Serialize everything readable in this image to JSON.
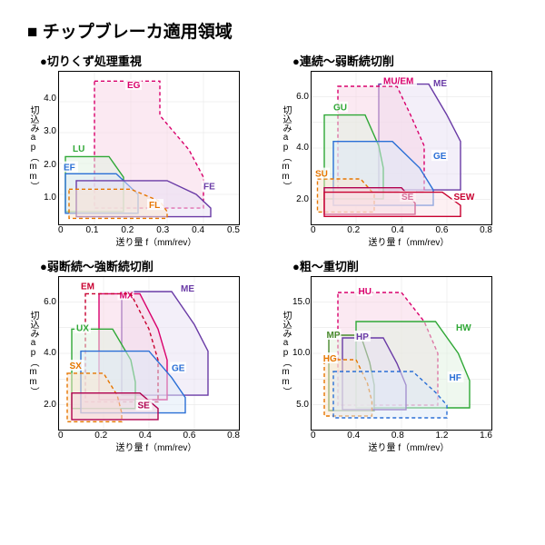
{
  "main_title": "■ チップブレーカ適用領域",
  "axis_x_label": "送り量 f（mm/rev）",
  "axis_y_label": "切込みap（mm）",
  "charts": [
    {
      "title": "●切りくず処理重視",
      "xlim": [
        0,
        0.5
      ],
      "xticks": [
        "0",
        "0.1",
        "0.2",
        "0.3",
        "0.4",
        "0.5"
      ],
      "ylim": [
        0,
        4.5
      ],
      "yticks": [
        "",
        "4.0",
        "3.0",
        "2.0",
        "1.0",
        ""
      ],
      "regions": [
        {
          "label": "EG",
          "color": "#d9006c",
          "fill": "#f8d3e5",
          "points": [
            [
              0.1,
              4.2
            ],
            [
              0.28,
              4.2
            ],
            [
              0.28,
              3.2
            ],
            [
              0.36,
              2.2
            ],
            [
              0.4,
              1.4
            ],
            [
              0.4,
              0.5
            ],
            [
              0.1,
              0.5
            ]
          ],
          "lx": 0.19,
          "ly": 4.0,
          "dashed": true
        },
        {
          "label": "LU",
          "color": "#2fa836",
          "fill": "#dff2df",
          "points": [
            [
              0.02,
              2.0
            ],
            [
              0.14,
              2.0
            ],
            [
              0.18,
              1.4
            ],
            [
              0.18,
              0.4
            ],
            [
              0.02,
              0.4
            ]
          ],
          "lx": 0.04,
          "ly": 2.15
        },
        {
          "label": "EF",
          "color": "#2a6fd6",
          "fill": "#dde9f8",
          "points": [
            [
              0.02,
              1.5
            ],
            [
              0.16,
              1.5
            ],
            [
              0.22,
              0.9
            ],
            [
              0.22,
              0.35
            ],
            [
              0.02,
              0.35
            ]
          ],
          "lx": 0.015,
          "ly": 1.6
        },
        {
          "label": "FE",
          "color": "#6a3ba6",
          "fill": "#e7dff4",
          "points": [
            [
              0.05,
              1.3
            ],
            [
              0.3,
              1.3
            ],
            [
              0.38,
              0.9
            ],
            [
              0.42,
              0.5
            ],
            [
              0.42,
              0.25
            ],
            [
              0.05,
              0.25
            ]
          ],
          "lx": 0.4,
          "ly": 1.05
        },
        {
          "label": "FL",
          "color": "#e67600",
          "fill": "#fce6cf",
          "points": [
            [
              0.03,
              1.05
            ],
            [
              0.2,
              1.05
            ],
            [
              0.28,
              0.7
            ],
            [
              0.3,
              0.4
            ],
            [
              0.3,
              0.2
            ],
            [
              0.03,
              0.2
            ]
          ],
          "lx": 0.25,
          "ly": 0.5,
          "dashed": true
        }
      ]
    },
    {
      "title": "●連続～弱断続切削",
      "xlim": [
        0,
        0.8
      ],
      "xticks": [
        "0",
        "0.2",
        "0.4",
        "0.6",
        "0.8"
      ],
      "ylim": [
        0,
        7
      ],
      "yticks": [
        "",
        "6.0",
        "",
        "4.0",
        "",
        "2.0",
        ""
      ],
      "regions": [
        {
          "label": "ME",
          "color": "#6a3ba6",
          "fill": "#e7dff4",
          "points": [
            [
              0.3,
              6.4
            ],
            [
              0.52,
              6.4
            ],
            [
              0.6,
              5.0
            ],
            [
              0.66,
              3.8
            ],
            [
              0.66,
              1.6
            ],
            [
              0.3,
              1.6
            ]
          ],
          "lx": 0.54,
          "ly": 6.3
        },
        {
          "label": "MU/EM",
          "color": "#d9006c",
          "fill": "#f8d3e5",
          "points": [
            [
              0.12,
              6.3
            ],
            [
              0.38,
              6.3
            ],
            [
              0.44,
              5.0
            ],
            [
              0.5,
              3.6
            ],
            [
              0.5,
              1.5
            ],
            [
              0.12,
              1.5
            ]
          ],
          "lx": 0.32,
          "ly": 6.4,
          "dashed": true
        },
        {
          "label": "GU",
          "color": "#2fa836",
          "fill": "#dff2df",
          "points": [
            [
              0.06,
              5.0
            ],
            [
              0.24,
              5.0
            ],
            [
              0.3,
              3.6
            ],
            [
              0.32,
              2.6
            ],
            [
              0.32,
              1.2
            ],
            [
              0.06,
              1.2
            ]
          ],
          "lx": 0.1,
          "ly": 5.2
        },
        {
          "label": "GE",
          "color": "#2a6fd6",
          "fill": "#dde9f8",
          "points": [
            [
              0.1,
              3.8
            ],
            [
              0.36,
              3.8
            ],
            [
              0.48,
              2.6
            ],
            [
              0.54,
              1.6
            ],
            [
              0.54,
              0.9
            ],
            [
              0.1,
              0.9
            ]
          ],
          "lx": 0.54,
          "ly": 3.0
        },
        {
          "label": "SU",
          "color": "#e67600",
          "fill": "#fce6cf",
          "points": [
            [
              0.03,
              2.1
            ],
            [
              0.22,
              2.1
            ],
            [
              0.28,
              1.4
            ],
            [
              0.28,
              0.6
            ],
            [
              0.03,
              0.6
            ]
          ],
          "lx": 0.02,
          "ly": 2.2,
          "dashed": true
        },
        {
          "label": "SE",
          "color": "#b0004f",
          "fill": "#f3d1de",
          "points": [
            [
              0.06,
              1.7
            ],
            [
              0.4,
              1.7
            ],
            [
              0.46,
              1.0
            ],
            [
              0.46,
              0.5
            ],
            [
              0.06,
              0.5
            ]
          ],
          "lx": 0.4,
          "ly": 1.15
        },
        {
          "label": "SEW",
          "color": "#c80030",
          "fill": "#fbe1e7",
          "points": [
            [
              0.06,
              1.5
            ],
            [
              0.58,
              1.5
            ],
            [
              0.66,
              0.9
            ],
            [
              0.66,
              0.4
            ],
            [
              0.06,
              0.4
            ]
          ],
          "lx": 0.63,
          "ly": 1.15
        }
      ]
    },
    {
      "title": "●弱断続～強断続切削",
      "xlim": [
        0,
        0.8
      ],
      "xticks": [
        "0",
        "0.2",
        "0.4",
        "0.6",
        "0.8"
      ],
      "ylim": [
        0,
        7
      ],
      "yticks": [
        "",
        "6.0",
        "",
        "4.0",
        "",
        "2.0",
        ""
      ],
      "regions": [
        {
          "label": "ME",
          "color": "#6a3ba6",
          "fill": "#e7dff4",
          "points": [
            [
              0.28,
              6.3
            ],
            [
              0.5,
              6.3
            ],
            [
              0.6,
              4.8
            ],
            [
              0.66,
              3.6
            ],
            [
              0.66,
              1.6
            ],
            [
              0.28,
              1.6
            ]
          ],
          "lx": 0.54,
          "ly": 6.3
        },
        {
          "label": "MX",
          "color": "#d9006c",
          "fill": "#f8d3e5",
          "points": [
            [
              0.18,
              6.2
            ],
            [
              0.36,
              6.2
            ],
            [
              0.44,
              4.6
            ],
            [
              0.48,
              3.2
            ],
            [
              0.48,
              1.4
            ],
            [
              0.18,
              1.4
            ]
          ],
          "lx": 0.27,
          "ly": 6.0
        },
        {
          "label": "EM",
          "color": "#c80030",
          "fill": "none",
          "points": [
            [
              0.12,
              6.2
            ],
            [
              0.32,
              6.2
            ],
            [
              0.4,
              4.6
            ],
            [
              0.44,
              3.2
            ],
            [
              0.44,
              1.3
            ],
            [
              0.12,
              1.3
            ]
          ],
          "lx": 0.1,
          "ly": 6.4,
          "dashed": true
        },
        {
          "label": "UX",
          "color": "#2fa836",
          "fill": "#dff2df",
          "points": [
            [
              0.06,
              4.6
            ],
            [
              0.24,
              4.6
            ],
            [
              0.32,
              3.2
            ],
            [
              0.34,
              2.2
            ],
            [
              0.34,
              1.0
            ],
            [
              0.06,
              1.0
            ]
          ],
          "lx": 0.08,
          "ly": 4.5
        },
        {
          "label": "GE",
          "color": "#2a6fd6",
          "fill": "#dde9f8",
          "points": [
            [
              0.1,
              3.6
            ],
            [
              0.4,
              3.6
            ],
            [
              0.5,
              2.4
            ],
            [
              0.56,
              1.5
            ],
            [
              0.56,
              0.8
            ],
            [
              0.1,
              0.8
            ]
          ],
          "lx": 0.5,
          "ly": 2.7
        },
        {
          "label": "SX",
          "color": "#e67600",
          "fill": "#fce6cf",
          "points": [
            [
              0.04,
              2.6
            ],
            [
              0.2,
              2.6
            ],
            [
              0.26,
              1.6
            ],
            [
              0.28,
              0.8
            ],
            [
              0.28,
              0.4
            ],
            [
              0.04,
              0.4
            ]
          ],
          "lx": 0.05,
          "ly": 2.8,
          "dashed": true
        },
        {
          "label": "SE",
          "color": "#b0004f",
          "fill": "#f3d1de",
          "points": [
            [
              0.06,
              1.7
            ],
            [
              0.36,
              1.7
            ],
            [
              0.44,
              1.0
            ],
            [
              0.44,
              0.5
            ],
            [
              0.06,
              0.5
            ]
          ],
          "lx": 0.35,
          "ly": 1.0
        }
      ]
    },
    {
      "title": "●粗～重切削",
      "xlim": [
        0,
        1.6
      ],
      "xticks": [
        "0",
        "0.4",
        "0.8",
        "1.2",
        "1.6"
      ],
      "ylim": [
        0,
        17
      ],
      "yticks": [
        "",
        "15.0",
        "",
        "10.0",
        "",
        "5.0",
        ""
      ],
      "regions": [
        {
          "label": "HU",
          "color": "#d9006c",
          "fill": "#f8d3e5",
          "points": [
            [
              0.24,
              15.2
            ],
            [
              0.8,
              15.2
            ],
            [
              1.0,
              12.0
            ],
            [
              1.12,
              8.5
            ],
            [
              1.12,
              2.8
            ],
            [
              0.24,
              2.8
            ]
          ],
          "lx": 0.42,
          "ly": 15.0,
          "dashed": true
        },
        {
          "label": "HW",
          "color": "#2fa836",
          "fill": "#dff2df",
          "points": [
            [
              0.4,
              12.0
            ],
            [
              1.1,
              12.0
            ],
            [
              1.3,
              8.5
            ],
            [
              1.4,
              5.5
            ],
            [
              1.4,
              2.5
            ],
            [
              0.4,
              2.5
            ]
          ],
          "lx": 1.28,
          "ly": 11.0
        },
        {
          "label": "MP",
          "color": "#4a8a2f",
          "fill": "#e2f0dc",
          "points": [
            [
              0.16,
              10.5
            ],
            [
              0.44,
              10.5
            ],
            [
              0.52,
              7.5
            ],
            [
              0.56,
              5.0
            ],
            [
              0.56,
              2.2
            ],
            [
              0.16,
              2.2
            ]
          ],
          "lx": 0.14,
          "ly": 10.2
        },
        {
          "label": "HP",
          "color": "#6a3ba6",
          "fill": "#e7dff4",
          "points": [
            [
              0.28,
              10.2
            ],
            [
              0.64,
              10.2
            ],
            [
              0.76,
              7.4
            ],
            [
              0.84,
              5.0
            ],
            [
              0.84,
              2.3
            ],
            [
              0.28,
              2.3
            ]
          ],
          "lx": 0.4,
          "ly": 10.0
        },
        {
          "label": "HG",
          "color": "#e67600",
          "fill": "#fce6cf",
          "points": [
            [
              0.12,
              7.8
            ],
            [
              0.4,
              7.8
            ],
            [
              0.5,
              5.2
            ],
            [
              0.54,
              3.2
            ],
            [
              0.54,
              1.6
            ],
            [
              0.12,
              1.6
            ]
          ],
          "lx": 0.11,
          "ly": 7.6,
          "dashed": true
        },
        {
          "label": "HF",
          "color": "#2a6fd6",
          "fill": "#dde9f8",
          "points": [
            [
              0.2,
              6.5
            ],
            [
              0.9,
              6.5
            ],
            [
              1.1,
              4.2
            ],
            [
              1.2,
              2.8
            ],
            [
              1.2,
              1.4
            ],
            [
              0.2,
              1.4
            ]
          ],
          "lx": 1.22,
          "ly": 5.5,
          "dashed": true
        }
      ]
    }
  ]
}
